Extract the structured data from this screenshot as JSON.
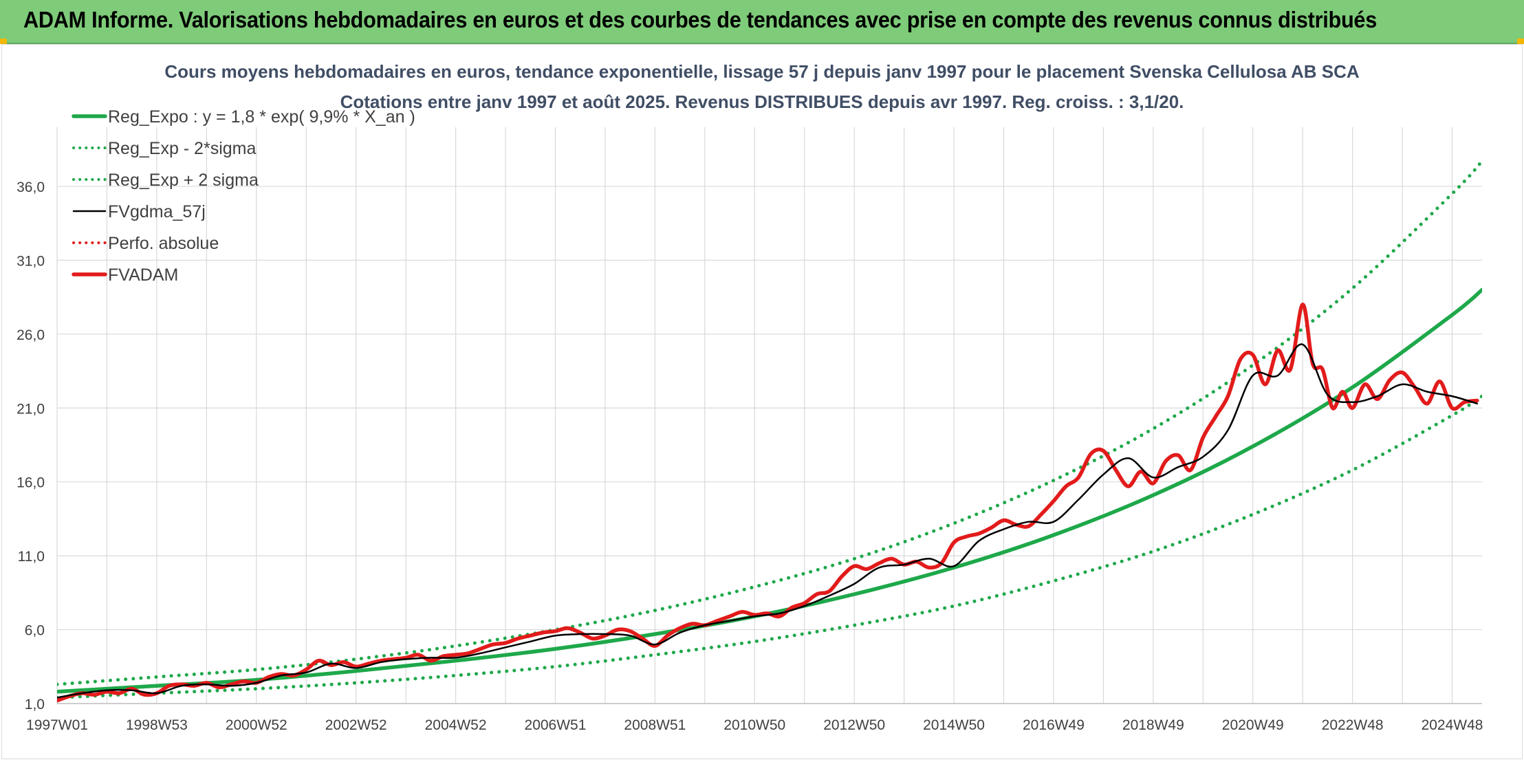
{
  "header": {
    "banner_text": "ADAM Informe. Valorisations hebdomadaires en euros et des courbes de tendances avec prise en compte des revenus connus distribués",
    "banner_color": "#7ecb79"
  },
  "chart_data": {
    "type": "line",
    "title": "Cours moyens hebdomadaires en euros, tendance exponentielle, lissage 57 j depuis janv 1997 pour le placement Svenska Cellulosa AB SCA",
    "subtitle": "Cotations entre janv 1997 et août 2025. Revenus DISTRIBUES depuis avr 1997. Reg. croiss. : 3,1/20.",
    "xlabel": "",
    "ylabel": "",
    "x_range": [
      1997.0,
      2025.6
    ],
    "ylim": [
      1.0,
      40.0
    ],
    "y_ticks": [
      "1,0",
      "6,0",
      "11,0",
      "16,0",
      "21,0",
      "26,0",
      "31,0",
      "36,0"
    ],
    "y_tick_values": [
      1,
      6,
      11,
      16,
      21,
      26,
      31,
      36
    ],
    "x_ticks": [
      "1997W01",
      "1998W53",
      "2000W52",
      "2002W52",
      "2004W52",
      "2006W51",
      "2008W51",
      "2010W50",
      "2012W50",
      "2014W50",
      "2016W49",
      "2018W49",
      "2020W49",
      "2022W48",
      "2024W48"
    ],
    "x_tick_values": [
      1997.0,
      1999.0,
      2001.0,
      2003.0,
      2005.0,
      2007.0,
      2009.0,
      2011.0,
      2013.0,
      2015.0,
      2017.0,
      2019.0,
      2021.0,
      2023.0,
      2025.0
    ],
    "grid": true,
    "legend_position": "top-left",
    "series": [
      {
        "name": "Reg_Expo : y = 1,8 * exp( 9,9% *  X_an )",
        "color": "#1ea84a",
        "style": "solid",
        "x": [
          1997.0,
          1999.0,
          2001.0,
          2003.0,
          2005.0,
          2007.0,
          2009.0,
          2011.0,
          2013.0,
          2015.0,
          2017.0,
          2019.0,
          2021.0,
          2023.0,
          2025.0,
          2025.6
        ],
        "values": [
          1.8,
          2.2,
          2.6,
          3.2,
          3.9,
          4.7,
          5.7,
          6.9,
          8.4,
          10.2,
          12.4,
          15.1,
          18.4,
          22.4,
          27.3,
          29.0
        ]
      },
      {
        "name": "Reg_Exp - 2*sigma",
        "color": "#1ea84a",
        "style": "dotted",
        "x": [
          1997.0,
          1999.0,
          2001.0,
          2003.0,
          2005.0,
          2007.0,
          2009.0,
          2011.0,
          2013.0,
          2015.0,
          2017.0,
          2019.0,
          2021.0,
          2023.0,
          2025.0,
          2025.6
        ],
        "values": [
          1.4,
          1.7,
          2.0,
          2.4,
          2.9,
          3.5,
          4.3,
          5.2,
          6.3,
          7.6,
          9.3,
          11.3,
          13.8,
          16.8,
          20.5,
          21.8
        ]
      },
      {
        "name": "Reg_Exp + 2 sigma",
        "color": "#1ea84a",
        "style": "dotted",
        "x": [
          1997.0,
          1999.0,
          2001.0,
          2003.0,
          2005.0,
          2007.0,
          2009.0,
          2011.0,
          2013.0,
          2015.0,
          2017.0,
          2019.0,
          2021.0,
          2023.0,
          2025.0,
          2025.6
        ],
        "values": [
          2.3,
          2.8,
          3.3,
          4.0,
          4.9,
          6.0,
          7.3,
          8.9,
          10.8,
          13.2,
          16.1,
          19.6,
          23.9,
          29.1,
          35.5,
          37.7
        ]
      },
      {
        "name": "FVgdma_57j",
        "color": "#000000",
        "style": "solid",
        "x": [
          1997.0,
          1997.5,
          1998.0,
          1998.5,
          1999.0,
          1999.5,
          2000.0,
          2000.5,
          2001.0,
          2001.5,
          2002.0,
          2002.5,
          2003.0,
          2003.5,
          2004.0,
          2004.5,
          2005.0,
          2005.5,
          2006.0,
          2006.5,
          2007.0,
          2007.5,
          2008.0,
          2008.5,
          2009.0,
          2009.5,
          2010.0,
          2010.5,
          2011.0,
          2011.5,
          2012.0,
          2012.5,
          2013.0,
          2013.5,
          2014.0,
          2014.5,
          2015.0,
          2015.5,
          2016.0,
          2016.5,
          2017.0,
          2017.5,
          2018.0,
          2018.5,
          2019.0,
          2019.5,
          2020.0,
          2020.5,
          2021.0,
          2021.5,
          2022.0,
          2022.5,
          2023.0,
          2023.5,
          2024.0,
          2024.5,
          2025.0,
          2025.5
        ],
        "values": [
          1.4,
          1.7,
          1.9,
          1.9,
          1.7,
          2.2,
          2.3,
          2.2,
          2.4,
          2.9,
          3.1,
          3.7,
          3.4,
          3.8,
          4.0,
          4.1,
          4.1,
          4.4,
          4.8,
          5.2,
          5.6,
          5.7,
          5.7,
          5.6,
          5.0,
          5.8,
          6.3,
          6.6,
          6.9,
          7.1,
          7.6,
          8.3,
          9.1,
          10.2,
          10.4,
          10.8,
          10.3,
          12.0,
          12.8,
          13.3,
          13.3,
          14.8,
          16.5,
          17.6,
          16.3,
          17.0,
          17.7,
          19.5,
          23.2,
          23.2,
          25.3,
          21.9,
          21.4,
          21.8,
          22.6,
          22.1,
          21.8,
          21.3
        ]
      },
      {
        "name": "Perfo. absolue",
        "color": "#e21b1b",
        "style": "dotted",
        "x": [],
        "values": []
      },
      {
        "name": "FVADAM",
        "color": "#e21b1b",
        "style": "solid",
        "x": [
          1997.0,
          1997.25,
          1997.5,
          1997.75,
          1998.0,
          1998.25,
          1998.5,
          1998.75,
          1999.0,
          1999.25,
          1999.5,
          1999.75,
          2000.0,
          2000.25,
          2000.5,
          2000.75,
          2001.0,
          2001.25,
          2001.5,
          2001.75,
          2002.0,
          2002.25,
          2002.5,
          2002.75,
          2003.0,
          2003.25,
          2003.5,
          2003.75,
          2004.0,
          2004.25,
          2004.5,
          2004.75,
          2005.0,
          2005.25,
          2005.5,
          2005.75,
          2006.0,
          2006.25,
          2006.5,
          2006.75,
          2007.0,
          2007.25,
          2007.5,
          2007.75,
          2008.0,
          2008.25,
          2008.5,
          2008.75,
          2009.0,
          2009.25,
          2009.5,
          2009.75,
          2010.0,
          2010.25,
          2010.5,
          2010.75,
          2011.0,
          2011.25,
          2011.5,
          2011.75,
          2012.0,
          2012.25,
          2012.5,
          2012.75,
          2013.0,
          2013.25,
          2013.5,
          2013.75,
          2014.0,
          2014.25,
          2014.5,
          2014.75,
          2015.0,
          2015.25,
          2015.5,
          2015.75,
          2016.0,
          2016.25,
          2016.5,
          2016.75,
          2017.0,
          2017.25,
          2017.5,
          2017.75,
          2018.0,
          2018.25,
          2018.5,
          2018.75,
          2019.0,
          2019.25,
          2019.5,
          2019.75,
          2020.0,
          2020.25,
          2020.5,
          2020.75,
          2021.0,
          2021.25,
          2021.5,
          2021.75,
          2022.0,
          2022.2,
          2022.4,
          2022.6,
          2022.8,
          2023.0,
          2023.25,
          2023.5,
          2023.75,
          2024.0,
          2024.25,
          2024.5,
          2024.75,
          2025.0,
          2025.25,
          2025.5
        ],
        "values": [
          1.2,
          1.5,
          1.7,
          1.6,
          1.8,
          1.7,
          2.0,
          1.6,
          1.7,
          2.2,
          2.3,
          2.2,
          2.4,
          2.1,
          2.3,
          2.5,
          2.4,
          2.8,
          3.0,
          2.9,
          3.3,
          3.9,
          3.6,
          3.8,
          3.5,
          3.7,
          3.9,
          4.0,
          4.1,
          4.3,
          3.9,
          4.2,
          4.3,
          4.4,
          4.7,
          5.0,
          5.1,
          5.4,
          5.6,
          5.8,
          5.9,
          6.1,
          5.8,
          5.4,
          5.6,
          6.0,
          5.9,
          5.4,
          4.9,
          5.6,
          6.1,
          6.4,
          6.3,
          6.6,
          6.9,
          7.2,
          7.0,
          7.1,
          6.9,
          7.5,
          7.8,
          8.4,
          8.6,
          9.6,
          10.3,
          10.1,
          10.5,
          10.8,
          10.4,
          10.6,
          10.2,
          10.5,
          11.9,
          12.3,
          12.5,
          12.9,
          13.4,
          13.1,
          13.0,
          13.8,
          14.7,
          15.7,
          16.3,
          17.9,
          18.1,
          16.8,
          15.7,
          16.7,
          15.9,
          17.4,
          17.8,
          16.8,
          19.0,
          20.4,
          21.8,
          24.3,
          24.6,
          22.6,
          24.9,
          23.6,
          28.0,
          24.0,
          23.6,
          21.0,
          22.1,
          21.0,
          22.6,
          21.6,
          22.9,
          23.4,
          22.4,
          21.3,
          22.8,
          21.0,
          21.4,
          21.5
        ]
      }
    ]
  }
}
